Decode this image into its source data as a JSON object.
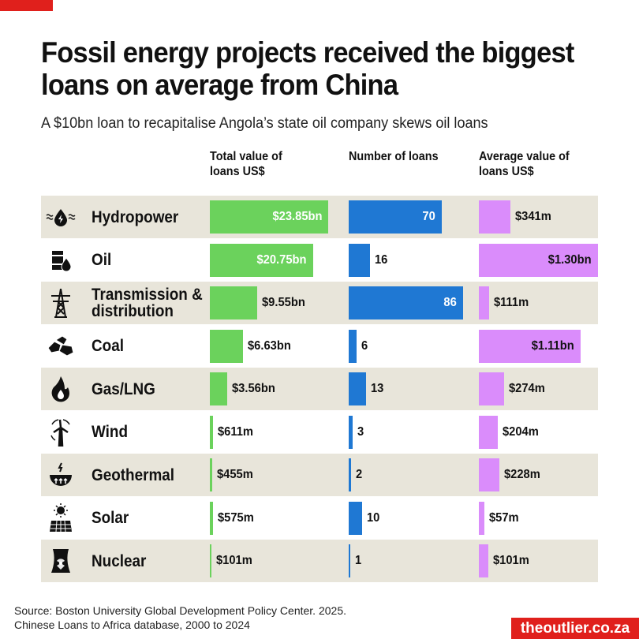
{
  "title": "Fossil energy projects received the biggest loans on average from China",
  "subtitle": "A $10bn loan to recapitalise Angola’s state oil company skews oil loans",
  "source_line1": "Source: Boston University Global Development Policy Center. 2025.",
  "source_line2": "Chinese Loans to Africa database, 2000 to 2024",
  "brand": "theoutlier.co.za",
  "colors": {
    "total": "#6bd25c",
    "count": "#1f78d3",
    "average": "#da8cfb",
    "row_alt": "#e8e5da",
    "brand": "#e0201c"
  },
  "chart_data": {
    "type": "bar",
    "title": "Fossil energy projects received the biggest loans on average from China",
    "columns": [
      {
        "key": "total",
        "header": "Total value of loans US$",
        "unit": "US$ bn",
        "max": 23.85
      },
      {
        "key": "count",
        "header": "Number of loans",
        "unit": "loans",
        "max": 86
      },
      {
        "key": "average",
        "header": "Average value of loans US$",
        "unit": "US$ bn",
        "max": 1.3
      }
    ],
    "categories": [
      "Hydropower",
      "Oil",
      "Transmission & distribution",
      "Coal",
      "Gas/LNG",
      "Wind",
      "Geothermal",
      "Solar",
      "Nuclear"
    ],
    "icons": [
      "hydropower-icon",
      "oil-barrel-icon",
      "transmission-tower-icon",
      "coal-icon",
      "gas-flame-icon",
      "wind-turbine-icon",
      "geothermal-icon",
      "solar-panel-icon",
      "nuclear-plant-icon"
    ],
    "series": [
      {
        "name": "total",
        "values": [
          23.85,
          20.75,
          9.55,
          6.63,
          3.56,
          0.611,
          0.455,
          0.575,
          0.101
        ],
        "labels": [
          "$23.85bn",
          "$20.75bn",
          "$9.55bn",
          "$6.63bn",
          "$3.56bn",
          "$611m",
          "$455m",
          "$575m",
          "$101m"
        ]
      },
      {
        "name": "count",
        "values": [
          70,
          16,
          86,
          6,
          13,
          3,
          2,
          10,
          1
        ],
        "labels": [
          "70",
          "16",
          "86",
          "6",
          "13",
          "3",
          "2",
          "10",
          "1"
        ]
      },
      {
        "name": "average",
        "values": [
          0.341,
          1.3,
          0.111,
          1.11,
          0.274,
          0.204,
          0.228,
          0.057,
          0.101
        ],
        "labels": [
          "$341m",
          "$1.30bn",
          "$111m",
          "$1.11bn",
          "$274m",
          "$204m",
          "$228m",
          "$57m",
          "$101m"
        ]
      }
    ]
  }
}
